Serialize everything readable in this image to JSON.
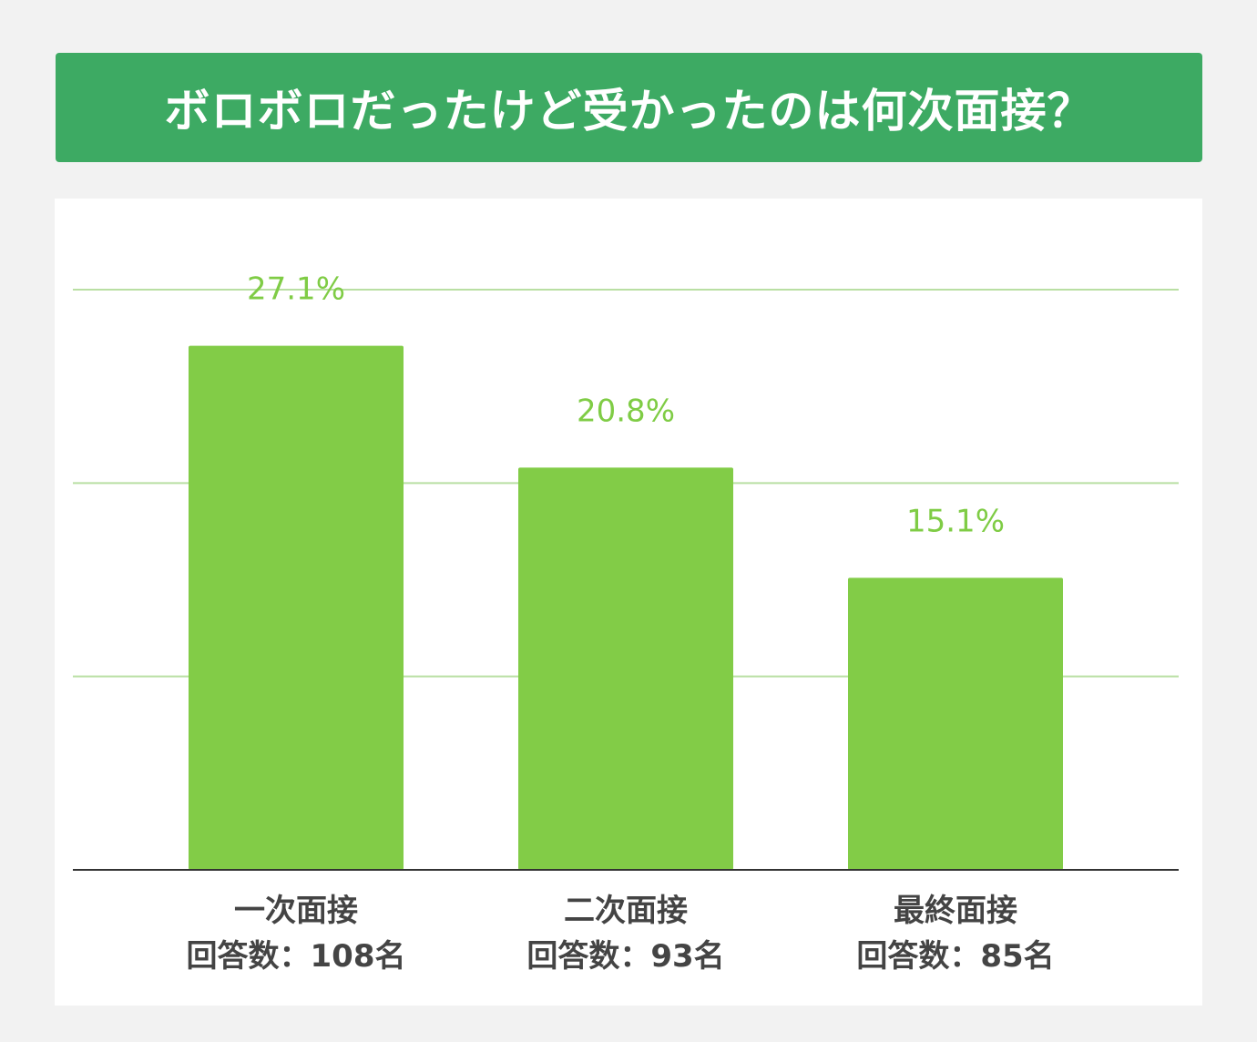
{
  "header": {
    "title": "ボロボロだったけど受かったのは何次面接？"
  },
  "colors": {
    "banner": "#3daa63",
    "bar": "#82cc47",
    "value_label": "#7fcc45",
    "gridline": "#b9dfa3",
    "axis": "#333333",
    "category_label": "#444444"
  },
  "chart_data": {
    "type": "bar",
    "title": "ボロボロだったけど受かったのは何次面接？",
    "categories": [
      "一次面接",
      "二次面接",
      "最終面接"
    ],
    "respondents": [
      "回答数：108名",
      "回答数：93名",
      "回答数：85名"
    ],
    "values": [
      27.1,
      20.8,
      15.1
    ],
    "value_labels": [
      "27.1%",
      "20.8%",
      "15.1%"
    ],
    "ylim": [
      0,
      30
    ],
    "gridlines": [
      10,
      20,
      30
    ],
    "grid": true,
    "legend": "none",
    "xlabel": "",
    "ylabel": ""
  }
}
